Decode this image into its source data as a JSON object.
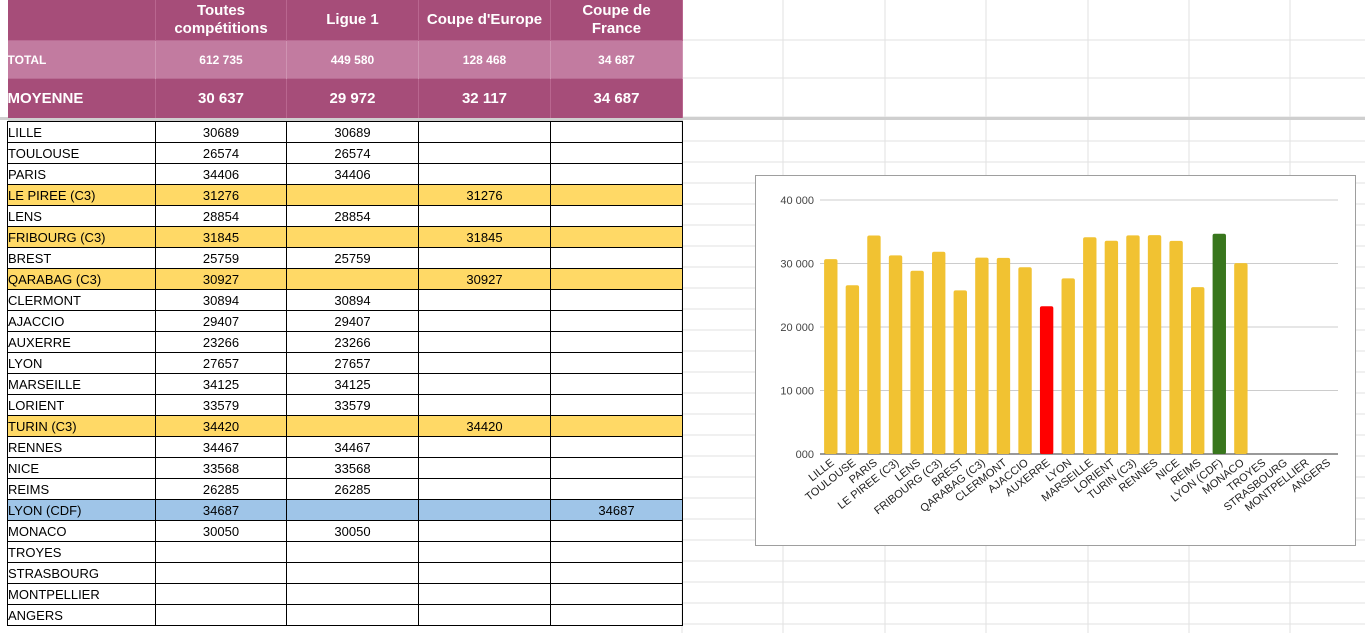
{
  "header": {
    "columns": [
      "",
      "Toutes compétitions",
      "Ligue 1",
      "Coupe d'Europe",
      "Coupe de France"
    ]
  },
  "summary": {
    "total": {
      "label": "TOTAL",
      "values": [
        "612 735",
        "449 580",
        "128 468",
        "34 687"
      ]
    },
    "average": {
      "label": "MOYENNE",
      "values": [
        "30 637",
        "29 972",
        "32 117",
        "34 687"
      ]
    }
  },
  "rows": [
    {
      "team": "LILLE",
      "all": "30689",
      "l1": "30689",
      "eur": "",
      "cdf": "",
      "kind": "l1"
    },
    {
      "team": "TOULOUSE",
      "all": "26574",
      "l1": "26574",
      "eur": "",
      "cdf": "",
      "kind": "l1"
    },
    {
      "team": "PARIS",
      "all": "34406",
      "l1": "34406",
      "eur": "",
      "cdf": "",
      "kind": "l1"
    },
    {
      "team": "LE PIREE (C3)",
      "all": "31276",
      "l1": "",
      "eur": "31276",
      "cdf": "",
      "kind": "c3"
    },
    {
      "team": "LENS",
      "all": "28854",
      "l1": "28854",
      "eur": "",
      "cdf": "",
      "kind": "l1"
    },
    {
      "team": "FRIBOURG (C3)",
      "all": "31845",
      "l1": "",
      "eur": "31845",
      "cdf": "",
      "kind": "c3"
    },
    {
      "team": "BREST",
      "all": "25759",
      "l1": "25759",
      "eur": "",
      "cdf": "",
      "kind": "l1"
    },
    {
      "team": "QARABAG (C3)",
      "all": "30927",
      "l1": "",
      "eur": "30927",
      "cdf": "",
      "kind": "c3"
    },
    {
      "team": "CLERMONT",
      "all": "30894",
      "l1": "30894",
      "eur": "",
      "cdf": "",
      "kind": "l1"
    },
    {
      "team": "AJACCIO",
      "all": "29407",
      "l1": "29407",
      "eur": "",
      "cdf": "",
      "kind": "l1"
    },
    {
      "team": "AUXERRE",
      "all": "23266",
      "l1": "23266",
      "eur": "",
      "cdf": "",
      "kind": "l1"
    },
    {
      "team": "LYON",
      "all": "27657",
      "l1": "27657",
      "eur": "",
      "cdf": "",
      "kind": "l1"
    },
    {
      "team": "MARSEILLE",
      "all": "34125",
      "l1": "34125",
      "eur": "",
      "cdf": "",
      "kind": "l1"
    },
    {
      "team": "LORIENT",
      "all": "33579",
      "l1": "33579",
      "eur": "",
      "cdf": "",
      "kind": "l1"
    },
    {
      "team": "TURIN (C3)",
      "all": "34420",
      "l1": "",
      "eur": "34420",
      "cdf": "",
      "kind": "c3"
    },
    {
      "team": "RENNES",
      "all": "34467",
      "l1": "34467",
      "eur": "",
      "cdf": "",
      "kind": "l1"
    },
    {
      "team": "NICE",
      "all": "33568",
      "l1": "33568",
      "eur": "",
      "cdf": "",
      "kind": "l1"
    },
    {
      "team": "REIMS",
      "all": "26285",
      "l1": "26285",
      "eur": "",
      "cdf": "",
      "kind": "l1"
    },
    {
      "team": "LYON (CDF)",
      "all": "34687",
      "l1": "",
      "eur": "",
      "cdf": "34687",
      "kind": "cdf"
    },
    {
      "team": "MONACO",
      "all": "30050",
      "l1": "30050",
      "eur": "",
      "cdf": "",
      "kind": "l1"
    },
    {
      "team": "TROYES",
      "all": "",
      "l1": "",
      "eur": "",
      "cdf": "",
      "kind": "l1"
    },
    {
      "team": "STRASBOURG",
      "all": "",
      "l1": "",
      "eur": "",
      "cdf": "",
      "kind": "l1"
    },
    {
      "team": "MONTPELLIER",
      "all": "",
      "l1": "",
      "eur": "",
      "cdf": "",
      "kind": "l1"
    },
    {
      "team": "ANGERS",
      "all": "",
      "l1": "",
      "eur": "",
      "cdf": "",
      "kind": "l1"
    }
  ],
  "colors": {
    "header_bg": "#a64d79",
    "total_bg": "#c27ba0",
    "c3_row": "#ffd966",
    "cdf_row": "#9fc5e8",
    "bar_default": "#f1c232",
    "bar_low": "#ff0000",
    "bar_high": "#38761d"
  },
  "chart_data": {
    "type": "bar",
    "title": "",
    "xlabel": "",
    "ylabel": "",
    "ylim": [
      0,
      40000
    ],
    "yticks": [
      "000",
      "10 000",
      "20 000",
      "30 000",
      "40 000"
    ],
    "grid": true,
    "legend": "none",
    "categories": [
      "LILLE",
      "TOULOUSE",
      "PARIS",
      "LE PIREE (C3)",
      "LENS",
      "FRIBOURG (C3)",
      "BREST",
      "QARABAG (C3)",
      "CLERMONT",
      "AJACCIO",
      "AUXERRE",
      "LYON",
      "MARSEILLE",
      "LORIENT",
      "TURIN (C3)",
      "RENNES",
      "NICE",
      "REIMS",
      "LYON (CDF)",
      "MONACO",
      "TROYES",
      "STRASBOURG",
      "MONTPELLIER",
      "ANGERS"
    ],
    "values": [
      30689,
      26574,
      34406,
      31276,
      28854,
      31845,
      25759,
      30927,
      30894,
      29407,
      23266,
      27657,
      34125,
      33579,
      34420,
      34467,
      33568,
      26285,
      34687,
      30050,
      null,
      null,
      null,
      null
    ],
    "bar_colors": [
      "#f1c232",
      "#f1c232",
      "#f1c232",
      "#f1c232",
      "#f1c232",
      "#f1c232",
      "#f1c232",
      "#f1c232",
      "#f1c232",
      "#f1c232",
      "#ff0000",
      "#f1c232",
      "#f1c232",
      "#f1c232",
      "#f1c232",
      "#f1c232",
      "#f1c232",
      "#f1c232",
      "#38761d",
      "#f1c232",
      "#f1c232",
      "#f1c232",
      "#f1c232",
      "#f1c232"
    ]
  }
}
